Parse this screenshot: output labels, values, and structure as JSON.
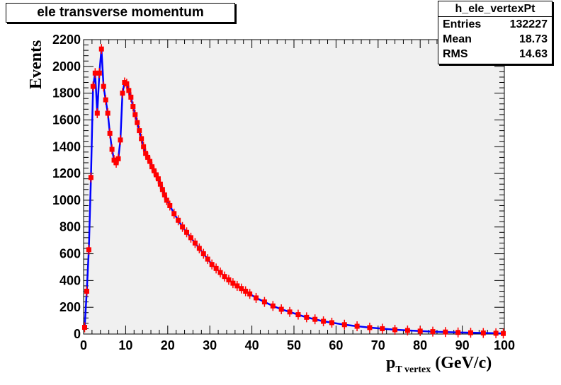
{
  "title": "ele transverse momentum",
  "stats": {
    "name": "h_ele_vertexPt",
    "rows": [
      {
        "label": "Entries",
        "value": "132227"
      },
      {
        "label": "Mean",
        "value": "18.73"
      },
      {
        "label": "RMS",
        "value": "14.63"
      }
    ]
  },
  "colors": {
    "line": "#0000ff",
    "marker": "#ff0000",
    "frame_fill": "#f0f0f0"
  },
  "chart_data": {
    "type": "line",
    "title": "ele transverse momentum",
    "xlabel_main": "p",
    "xlabel_sub": "T vertex",
    "xlabel_unit": "(GeV/c)",
    "ylabel": "Events",
    "xlim": [
      0,
      100
    ],
    "ylim": [
      0,
      2200
    ],
    "x_ticks": [
      "0",
      "10",
      "20",
      "30",
      "40",
      "50",
      "60",
      "70",
      "80",
      "90",
      "100"
    ],
    "y_ticks": [
      "0",
      "200",
      "400",
      "600",
      "800",
      "1000",
      "1200",
      "1400",
      "1600",
      "1800",
      "2000",
      "2200"
    ],
    "grid": false,
    "legend": "none",
    "series": [
      {
        "x": [
          0.25,
          0.75,
          1.25,
          1.75,
          2.25,
          2.75,
          3.25,
          3.75,
          4.25,
          4.75,
          5.25,
          5.75,
          6.25,
          6.75,
          7.25,
          7.75,
          8.25,
          8.75,
          9.25,
          9.75,
          10.25,
          10.75,
          11.25,
          11.75,
          12.25,
          12.75,
          13.25,
          13.75,
          14.25,
          14.75,
          15.25,
          15.75,
          16.25,
          16.75,
          17.25,
          17.75,
          18.25,
          18.75,
          19.25,
          19.75,
          20.5,
          21.5,
          22.5,
          23.5,
          24.5,
          25.5,
          26.5,
          27.5,
          28.5,
          29.5,
          30.5,
          31.5,
          32.5,
          33.5,
          34.5,
          35.5,
          36.5,
          37.5,
          38.5,
          39.5,
          41,
          43,
          45,
          47,
          49,
          51,
          53,
          55,
          57,
          59,
          62,
          65,
          68,
          71,
          74,
          77,
          80,
          83,
          86,
          89,
          92,
          95,
          98,
          99.75
        ],
        "y": [
          50,
          320,
          630,
          1170,
          1850,
          1950,
          1650,
          1950,
          2130,
          1850,
          1750,
          1650,
          1500,
          1380,
          1300,
          1280,
          1310,
          1450,
          1800,
          1880,
          1870,
          1820,
          1770,
          1700,
          1640,
          1580,
          1520,
          1460,
          1400,
          1350,
          1320,
          1290,
          1250,
          1220,
          1190,
          1160,
          1120,
          1080,
          1040,
          1000,
          960,
          900,
          850,
          800,
          760,
          720,
          680,
          640,
          600,
          560,
          520,
          490,
          460,
          430,
          405,
          380,
          360,
          340,
          320,
          300,
          270,
          240,
          210,
          185,
          165,
          145,
          125,
          110,
          95,
          85,
          70,
          58,
          48,
          40,
          32,
          27,
          22,
          18,
          15,
          12,
          10,
          8,
          6,
          4
        ]
      }
    ]
  }
}
